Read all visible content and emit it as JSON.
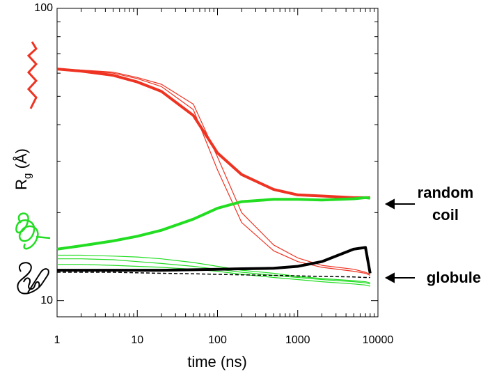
{
  "chart_data": {
    "type": "line",
    "x_label": "time (ns)",
    "y_label": "R",
    "y_label_sub": "g",
    "y_label_suffix": " (Å)",
    "log_x": true,
    "log_y": true,
    "xlim": [
      1,
      10000
    ],
    "ylim": [
      8.8,
      100
    ],
    "xticks": [
      1,
      10,
      100,
      1000,
      10000
    ],
    "xminor_ticks": [
      2,
      3,
      4,
      5,
      6,
      7,
      8,
      9,
      20,
      30,
      40,
      50,
      60,
      70,
      80,
      90,
      200,
      300,
      400,
      500,
      600,
      700,
      800,
      900,
      2000,
      3000,
      4000,
      5000,
      6000,
      7000,
      8000,
      9000
    ],
    "yticks": [
      10,
      100
    ],
    "yminor_ticks": [
      20,
      30,
      40,
      50,
      60,
      70,
      80,
      90
    ],
    "x": [
      1,
      2,
      5,
      10,
      20,
      50,
      100,
      200,
      500,
      1000,
      2000,
      5000,
      7000,
      8000
    ],
    "series": [
      {
        "color": "#22dd22",
        "width": 1.2,
        "values": [
          14.3,
          14.3,
          14.2,
          14.1,
          13.9,
          13.5,
          13.1,
          12.7,
          12.4,
          12.1,
          11.9,
          11.7,
          11.6,
          11.5
        ]
      },
      {
        "color": "#22dd22",
        "width": 1.2,
        "values": [
          13.9,
          13.9,
          13.8,
          13.6,
          13.4,
          13.1,
          12.8,
          12.5,
          12.2,
          12,
          11.8,
          11.6,
          11.5,
          11.4
        ]
      },
      {
        "color": "#22dd22",
        "width": 1.2,
        "values": [
          13.3,
          13.3,
          13.2,
          13.1,
          13,
          12.8,
          12.6,
          12.3,
          12,
          11.8,
          11.6,
          11.4,
          11.3,
          11.2
        ]
      },
      {
        "color": "#ee3322",
        "width": 1.2,
        "values": [
          62,
          61.5,
          60,
          57.5,
          54,
          45,
          28,
          18.5,
          14.8,
          13.6,
          13,
          12.6,
          12.4,
          12.2
        ]
      },
      {
        "color": "#ee3322",
        "width": 1.2,
        "values": [
          62,
          61.5,
          60.5,
          58,
          55,
          47,
          31,
          20,
          15.5,
          14,
          13.2,
          12.8,
          12.5,
          12.3
        ]
      },
      {
        "color": "#000000",
        "width": 1.5,
        "dash": true,
        "values": [
          12.5,
          12.5,
          12.5,
          12.45,
          12.4,
          12.35,
          12.3,
          12.25,
          12.2,
          12.15,
          12.1,
          12.05,
          12,
          12
        ]
      },
      {
        "color": "#000000",
        "width": 4,
        "values": [
          12.7,
          12.7,
          12.7,
          12.7,
          12.7,
          12.75,
          12.8,
          12.85,
          12.9,
          13.1,
          13.6,
          15,
          15.2,
          12.4
        ]
      },
      {
        "color": "#ee3322",
        "width": 4,
        "values": [
          62,
          61,
          59,
          56,
          52,
          43,
          32,
          27,
          24,
          23,
          22.8,
          22.5,
          22.5,
          22.5
        ]
      },
      {
        "color": "#22dd22",
        "width": 4,
        "values": [
          15,
          15.4,
          16,
          16.6,
          17.4,
          19,
          20.7,
          21.8,
          22.2,
          22.2,
          22.1,
          22.3,
          22.5,
          22.4
        ]
      }
    ],
    "annotations": [
      {
        "lines": [
          "random",
          "coil"
        ]
      },
      {
        "lines": [
          "globule"
        ]
      }
    ]
  }
}
